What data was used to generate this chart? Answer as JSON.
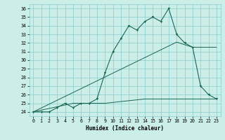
{
  "xlabel": "Humidex (Indice chaleur)",
  "background_color": "#cceee8",
  "grid_color": "#88cccc",
  "line_color": "#1a6655",
  "xlim": [
    -0.5,
    23.5
  ],
  "ylim": [
    23.5,
    36.5
  ],
  "xticks": [
    0,
    1,
    2,
    3,
    4,
    5,
    6,
    7,
    8,
    9,
    10,
    11,
    12,
    13,
    14,
    15,
    16,
    17,
    18,
    19,
    20,
    21,
    22,
    23
  ],
  "yticks": [
    24,
    25,
    26,
    27,
    28,
    29,
    30,
    31,
    32,
    33,
    34,
    35,
    36
  ],
  "main_line_y": [
    24,
    24,
    24,
    24.5,
    25,
    24.5,
    25,
    25,
    25.5,
    28.5,
    31,
    32.5,
    34,
    33.5,
    34.5,
    35,
    34.5,
    36,
    33,
    32,
    31.5,
    27,
    26,
    25.5
  ],
  "line_diag_y": [
    24,
    24.45,
    24.9,
    25.35,
    25.8,
    26.25,
    26.7,
    27.15,
    27.6,
    28.05,
    28.5,
    28.95,
    29.4,
    29.85,
    30.3,
    30.75,
    31.2,
    31.65,
    32.1,
    31.8,
    31.5,
    31.5,
    31.5,
    31.5
  ],
  "line_flat_y": [
    24,
    24.2,
    24.4,
    24.6,
    24.8,
    25.0,
    25.0,
    25.0,
    25.0,
    25.0,
    25.1,
    25.2,
    25.3,
    25.4,
    25.5,
    25.5,
    25.5,
    25.5,
    25.5,
    25.5,
    25.5,
    25.5,
    25.5,
    25.5
  ]
}
